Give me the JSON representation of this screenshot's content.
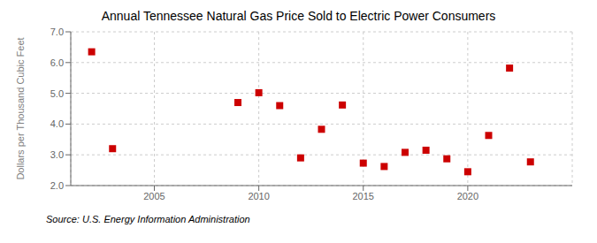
{
  "chart_data": {
    "type": "scatter",
    "title": "Annual Tennessee Natural Gas Price Sold to Electric Power Consumers",
    "y_label": "Dollars per Thousand Cubic Feet",
    "annotations": [
      "Source: U.S. Energy Information Administration"
    ],
    "x": [
      2002,
      2003,
      2009,
      2010,
      2011,
      2012,
      2013,
      2014,
      2015,
      2016,
      2017,
      2018,
      2019,
      2020,
      2021,
      2022,
      2023
    ],
    "values": [
      6.35,
      3.2,
      4.7,
      5.02,
      4.6,
      2.9,
      3.83,
      4.62,
      2.73,
      2.62,
      3.08,
      3.15,
      2.87,
      2.45,
      3.63,
      5.82,
      2.77
    ],
    "color": "#cc0000",
    "marker": "square",
    "xlim": [
      2001,
      2025
    ],
    "xticks": [
      2005,
      2010,
      2015,
      2020
    ],
    "ylim": [
      2.0,
      7.0
    ],
    "yticks": [
      {
        "value": 2.0,
        "label": "2.0"
      },
      {
        "value": 3.0,
        "label": "3.0"
      },
      {
        "value": 4.0,
        "label": "4.0"
      },
      {
        "value": 5.0,
        "label": "5.0"
      },
      {
        "value": 6.0,
        "label": "6.0"
      },
      {
        "value": 7.0,
        "label": "7.0"
      }
    ],
    "grid": true
  }
}
